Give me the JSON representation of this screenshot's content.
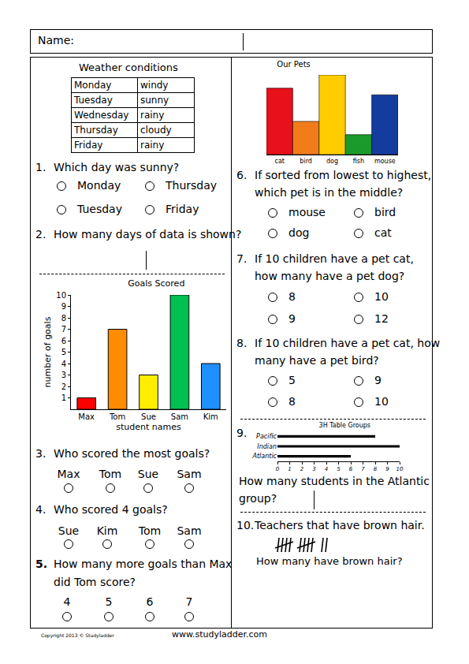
{
  "header": {
    "name_label": "Name:"
  },
  "weather_table": {
    "title": "Weather conditions",
    "rows": [
      [
        "Monday",
        "windy"
      ],
      [
        "Tuesday",
        "sunny"
      ],
      [
        "Wednesday",
        "rainy"
      ],
      [
        "Thursday",
        "cloudy"
      ],
      [
        "Friday",
        "rainy"
      ]
    ]
  },
  "chart_data": [
    {
      "type": "bar",
      "title": "Goals Scored",
      "x_label": "student names",
      "y_label": "number of goals",
      "categories": [
        "Max",
        "Tom",
        "Sue",
        "Sam",
        "Kim"
      ],
      "values": [
        1,
        7,
        3,
        10,
        4
      ],
      "colors": [
        "#ff0000",
        "#ff8c00",
        "#ffee00",
        "#00c050",
        "#1e90ff"
      ],
      "ylim": [
        0,
        10
      ],
      "yticks": [
        1,
        2,
        3,
        4,
        5,
        6,
        7,
        8,
        9,
        10
      ],
      "grid": false
    },
    {
      "type": "bar",
      "title": "Our Pets",
      "categories": [
        "cat",
        "bird",
        "dog",
        "fish",
        "mouse"
      ],
      "values": [
        10,
        5,
        12,
        3,
        9
      ],
      "colors": [
        "#e8101a",
        "#f07d1a",
        "#ffcc00",
        "#1a9a2a",
        "#143c9e"
      ],
      "ylim": [
        0,
        12
      ],
      "tick_labels": "x",
      "grid": false
    },
    {
      "type": "bar",
      "orientation": "horizontal",
      "title": "3H Table Groups",
      "categories": [
        "Pacific",
        "Indian",
        "Atlantic"
      ],
      "values": [
        8,
        10,
        6
      ],
      "color": "#000000",
      "xlim": [
        0,
        10
      ],
      "xticks": [
        0,
        1,
        2,
        3,
        4,
        5,
        6,
        7,
        8,
        9,
        10
      ],
      "grid": false
    }
  ],
  "questions": [
    {
      "number": "1.",
      "text": [
        "Which day was sunny?"
      ],
      "options": [
        "Monday",
        "Thursday",
        "Tuesday",
        "Friday"
      ]
    },
    {
      "number": "2.",
      "text": [
        "How many days of data is shown?"
      ]
    },
    {
      "number": "3.",
      "text": [
        "Who scored the most goals?"
      ],
      "options": [
        "Max",
        "Tom",
        "Sue",
        "Sam"
      ]
    },
    {
      "number": "4.",
      "text": [
        "Who scored 4 goals?"
      ],
      "options": [
        "Sue",
        "Kim",
        "Tom",
        "Sam"
      ]
    },
    {
      "number": "5.",
      "text": [
        "How many more goals than Max",
        "did Tom score?"
      ],
      "options": [
        "4",
        "5",
        "6",
        "7"
      ]
    },
    {
      "number": "6.",
      "text": [
        "If sorted from lowest to highest,",
        "which pet is in the middle?"
      ],
      "options": [
        "mouse",
        "bird",
        "dog",
        "cat"
      ]
    },
    {
      "number": "7.",
      "text": [
        "If 10 children have a pet cat,",
        "how many have a pet dog?"
      ],
      "options": [
        "8",
        "10",
        "9",
        "12"
      ]
    },
    {
      "number": "8.",
      "text": [
        "If 10 children have a pet cat, how",
        "many have a pet bird?"
      ],
      "options": [
        "5",
        "9",
        "8",
        "10"
      ]
    },
    {
      "number": "9.",
      "text": [
        "How many students in the Atlantic",
        "group?"
      ]
    },
    {
      "number": "10.",
      "text": [
        "Teachers that have brown hair."
      ],
      "tally": 12,
      "prompt": "How many have brown hair?"
    }
  ],
  "footer": {
    "copyright": "Copyright 2013 © Studyladder",
    "website": "www.studyladder.com"
  }
}
